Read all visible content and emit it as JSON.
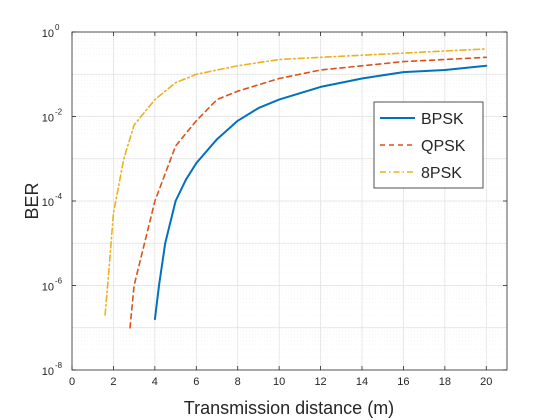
{
  "chart_data": {
    "type": "line",
    "xlabel": "Transmission distance (m)",
    "ylabel": "BER",
    "x_scale": "linear",
    "y_scale": "log",
    "xlim": [
      0,
      21
    ],
    "ylim": [
      1e-08,
      1
    ],
    "x_ticks": [
      0,
      2,
      4,
      6,
      8,
      10,
      12,
      14,
      16,
      18,
      20
    ],
    "y_ticks": [
      {
        "base": "10",
        "exp": "-8",
        "value": 1e-08
      },
      {
        "base": "10",
        "exp": "-6",
        "value": 1e-06
      },
      {
        "base": "10",
        "exp": "-4",
        "value": 0.0001
      },
      {
        "base": "10",
        "exp": "-2",
        "value": 0.01
      },
      {
        "base": "10",
        "exp": "0",
        "value": 1
      }
    ],
    "grid": true,
    "legend": {
      "position": "center-right"
    },
    "series": [
      {
        "name": "BPSK",
        "color": "#0072BD",
        "line_style": "solid",
        "x": [
          4.0,
          4.2,
          4.5,
          5.0,
          5.5,
          6.0,
          7.0,
          8.0,
          9.0,
          10.0,
          12.0,
          14.0,
          16.0,
          18.0,
          20.0
        ],
        "y": [
          1.6e-07,
          1e-06,
          1e-05,
          0.0001,
          0.00032,
          0.00079,
          0.0029,
          0.0079,
          0.0158,
          0.0251,
          0.0501,
          0.0794,
          0.1122,
          0.1259,
          0.1585
        ]
      },
      {
        "name": "QPSK",
        "color": "#D95319",
        "line_style": "dashed",
        "x": [
          2.8,
          3.0,
          3.5,
          4.0,
          5.0,
          6.0,
          7.0,
          8.0,
          10.0,
          12.0,
          14.0,
          16.0,
          18.0,
          20.0
        ],
        "y": [
          1e-07,
          1e-06,
          1e-05,
          0.0001,
          0.002,
          0.0079,
          0.0251,
          0.0398,
          0.0794,
          0.1259,
          0.1585,
          0.1995,
          0.2239,
          0.2512
        ]
      },
      {
        "name": "8PSK",
        "color": "#EDB120",
        "line_style": "dash-dot",
        "x": [
          1.6,
          1.8,
          2.0,
          2.5,
          3.0,
          4.0,
          5.0,
          6.0,
          8.0,
          10.0,
          12.0,
          14.0,
          16.0,
          18.0,
          20.0
        ],
        "y": [
          2e-07,
          3e-06,
          5e-05,
          0.001,
          0.0063,
          0.0251,
          0.0631,
          0.1,
          0.1585,
          0.2239,
          0.2512,
          0.2818,
          0.3162,
          0.3548,
          0.3981
        ]
      }
    ]
  }
}
